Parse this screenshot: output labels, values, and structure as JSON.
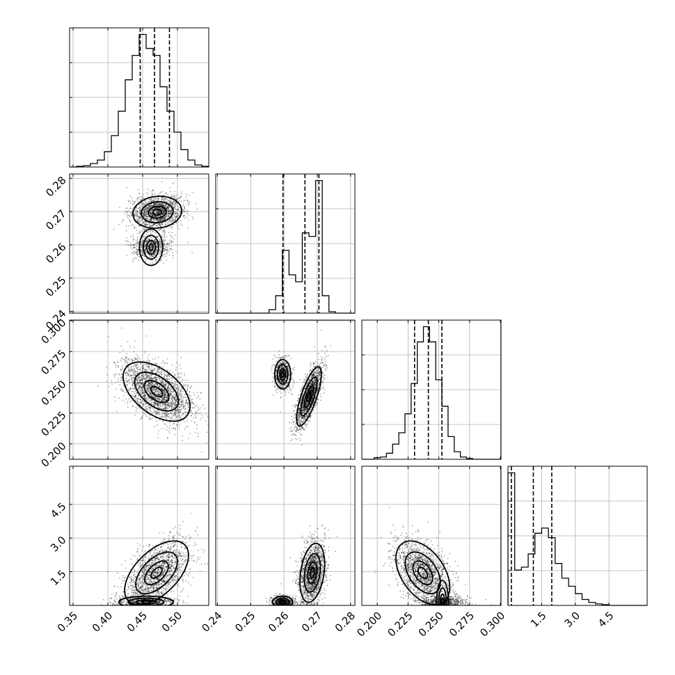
{
  "chart_data": {
    "type": "corner",
    "parameters": [
      {
        "range": [
          0.345,
          0.545
        ],
        "ticks": [
          0.35,
          0.4,
          0.45,
          0.5
        ],
        "tick_labels": [
          "0.35",
          "0.40",
          "0.45",
          "0.50"
        ],
        "quantiles": [
          0.4465,
          0.467,
          0.4885
        ],
        "hist_edges": [
          0.345,
          0.355,
          0.365,
          0.375,
          0.385,
          0.395,
          0.405,
          0.415,
          0.425,
          0.435,
          0.445,
          0.455,
          0.465,
          0.475,
          0.485,
          0.495,
          0.505,
          0.515,
          0.525,
          0.535,
          0.545
        ],
        "hist_counts": [
          0,
          1,
          2,
          5,
          10,
          22,
          45,
          80,
          125,
          160,
          190,
          170,
          160,
          115,
          80,
          50,
          25,
          10,
          3,
          1
        ]
      },
      {
        "range": [
          0.2395,
          0.2813
        ],
        "ticks": [
          0.24,
          0.25,
          0.26,
          0.27,
          0.28
        ],
        "tick_labels": [
          "0.24",
          "0.25",
          "0.26",
          "0.27",
          "0.28"
        ],
        "quantiles": [
          0.2597,
          0.2663,
          0.2705
        ],
        "hist_edges": [
          0.2395,
          0.2415,
          0.2435,
          0.2455,
          0.2475,
          0.2495,
          0.2515,
          0.2535,
          0.2555,
          0.2575,
          0.2595,
          0.2615,
          0.2635,
          0.2655,
          0.2675,
          0.2695,
          0.2715,
          0.2735,
          0.2755,
          0.2775,
          0.2795,
          0.2813
        ],
        "hist_counts": [
          0,
          0,
          0,
          0,
          0,
          0,
          0,
          0,
          5,
          25,
          90,
          55,
          45,
          115,
          110,
          190,
          25,
          2,
          0,
          0,
          0
        ]
      },
      {
        "range": [
          0.1875,
          0.3005
        ],
        "ticks": [
          0.2,
          0.225,
          0.25,
          0.275,
          0.3
        ],
        "tick_labels": [
          "0.200",
          "0.225",
          "0.250",
          "0.275",
          "0.300"
        ],
        "quantiles": [
          0.2303,
          0.2415,
          0.2525
        ],
        "hist_edges": [
          0.1875,
          0.1925,
          0.1975,
          0.2025,
          0.2075,
          0.2125,
          0.2175,
          0.2225,
          0.2275,
          0.2325,
          0.2375,
          0.2425,
          0.2475,
          0.2525,
          0.2575,
          0.2625,
          0.2675,
          0.2725,
          0.2775,
          0.2825,
          0.2875,
          0.2925,
          0.3005
        ],
        "hist_counts": [
          0,
          0,
          2,
          3,
          8,
          20,
          35,
          60,
          100,
          155,
          175,
          155,
          105,
          70,
          30,
          10,
          3,
          1,
          0,
          0,
          0,
          0
        ]
      },
      {
        "range": [
          0.0,
          6.2
        ],
        "ticks": [
          1.5,
          3.0,
          4.5
        ],
        "tick_labels": [
          "1.5",
          "3.0",
          "4.5"
        ],
        "quantiles": [
          0.15,
          1.13,
          1.95
        ],
        "hist_edges": [
          0.0,
          0.3,
          0.6,
          0.9,
          1.2,
          1.5,
          1.8,
          2.1,
          2.4,
          2.7,
          3.0,
          3.3,
          3.6,
          3.9,
          4.2,
          4.5,
          4.8,
          5.1,
          5.4,
          5.7,
          6.0,
          6.2
        ],
        "hist_counts": [
          180,
          48,
          52,
          70,
          98,
          105,
          92,
          57,
          37,
          26,
          16,
          8,
          4,
          2,
          1,
          0,
          0,
          0,
          0,
          0,
          0
        ]
      }
    ],
    "x_tick_labels_rotated_deg": 45,
    "y_tick_labels_rotated_deg": 45,
    "grid": true,
    "two_d_panels": [
      {
        "row": 1,
        "col": 0,
        "modes": [
          {
            "center": [
              0.471,
              0.2698
            ],
            "std": [
              0.016,
              0.0022
            ],
            "rho": 0.1,
            "weight": 0.7
          },
          {
            "center": [
              0.462,
              0.2593
            ],
            "std": [
              0.012,
              0.0016
            ],
            "rho": 0.0,
            "weight": 0.3
          }
        ]
      },
      {
        "row": 2,
        "col": 0,
        "modes": [
          {
            "center": [
              0.47,
              0.2425
            ],
            "std": [
              0.022,
              0.011
            ],
            "rho": -0.5,
            "weight": 1.0
          }
        ]
      },
      {
        "row": 2,
        "col": 1,
        "modes": [
          {
            "center": [
              0.2596,
              0.2565
            ],
            "std": [
              0.0011,
              0.0055
            ],
            "rho": 0.0,
            "weight": 0.3
          },
          {
            "center": [
              0.2675,
              0.2385
            ],
            "std": [
              0.0017,
              0.011
            ],
            "rho": 0.75,
            "weight": 0.7
          }
        ]
      },
      {
        "row": 3,
        "col": 0,
        "modes": [
          {
            "center": [
              0.47,
              1.45
            ],
            "std": [
              0.021,
              0.65
            ],
            "rho": 0.55,
            "weight": 0.72
          },
          {
            "center": [
              0.455,
              0.15
            ],
            "std": [
              0.018,
              0.12
            ],
            "rho": 0.0,
            "weight": 0.28
          }
        ]
      },
      {
        "row": 3,
        "col": 1,
        "modes": [
          {
            "center": [
              0.2685,
              1.45
            ],
            "std": [
              0.0017,
              0.6
            ],
            "rho": 0.3,
            "weight": 0.7
          },
          {
            "center": [
              0.2596,
              0.15
            ],
            "std": [
              0.0014,
              0.12
            ],
            "rho": 0.0,
            "weight": 0.3
          }
        ]
      },
      {
        "row": 3,
        "col": 2,
        "modes": [
          {
            "center": [
              0.237,
              1.45
            ],
            "std": [
              0.01,
              0.65
            ],
            "rho": -0.45,
            "weight": 0.72
          },
          {
            "center": [
              0.253,
              0.15
            ],
            "std": [
              0.008,
              0.12
            ],
            "rho": 0.0,
            "weight": 0.28
          }
        ]
      }
    ]
  }
}
